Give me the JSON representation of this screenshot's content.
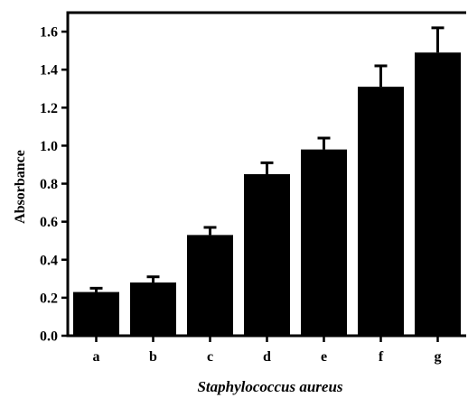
{
  "chart_data": {
    "type": "bar",
    "title": "",
    "xlabel": "Staphylococcus aureus",
    "ylabel": "Absorbance",
    "categories": [
      "a",
      "b",
      "c",
      "d",
      "e",
      "f",
      "g"
    ],
    "values": [
      0.23,
      0.28,
      0.53,
      0.85,
      0.98,
      1.31,
      1.49
    ],
    "errors": [
      0.02,
      0.03,
      0.04,
      0.06,
      0.06,
      0.11,
      0.13
    ],
    "ylim": [
      0,
      1.7
    ],
    "yticks": [
      "0.0",
      "0.2",
      "0.4",
      "0.6",
      "0.8",
      "1.0",
      "1.2",
      "1.4",
      "1.6"
    ],
    "grid": false,
    "bar_color": "#000000"
  }
}
